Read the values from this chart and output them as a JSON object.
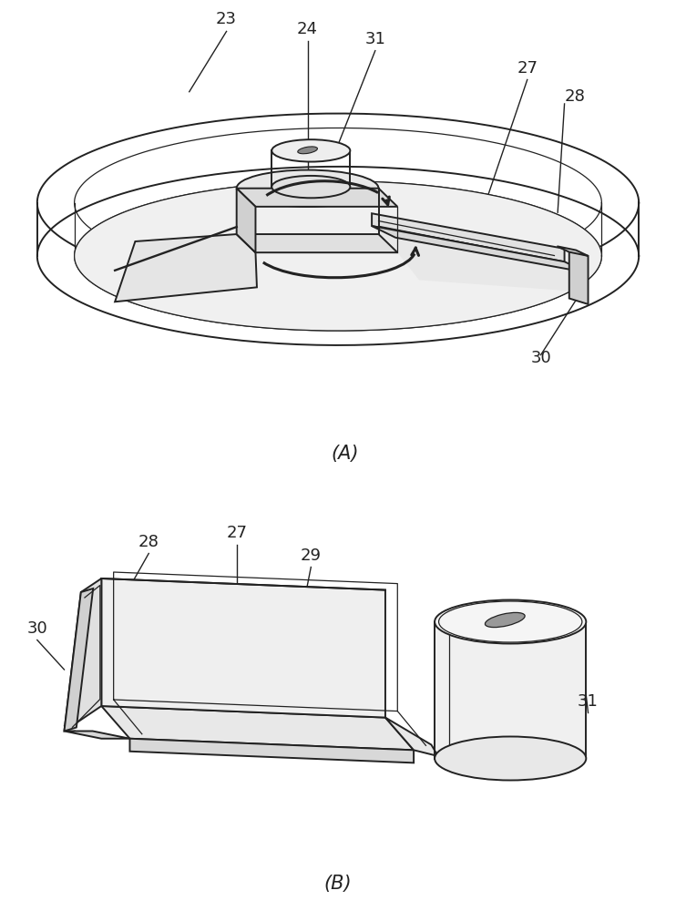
{
  "background_color": "#ffffff",
  "line_color": "#222222",
  "label_color": "#222222",
  "label_fontsize": 13,
  "caption_fontsize": 15,
  "figure_width": 7.42,
  "figure_height": 10.0
}
